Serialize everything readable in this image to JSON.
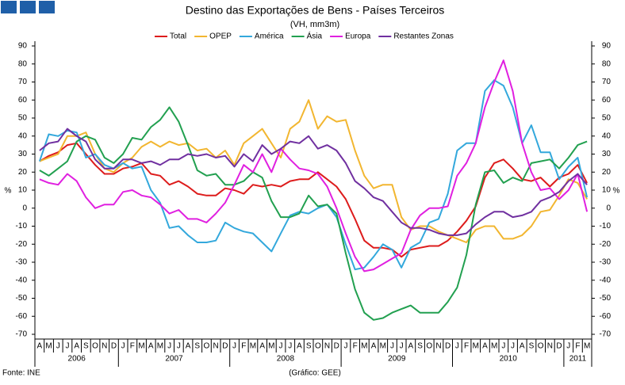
{
  "chart_data": {
    "type": "line",
    "title": "Destino das Exportações de Bens - Países Terceiros",
    "subtitle": "(VH, mm3m)",
    "y_label": "%",
    "y2_label": "%",
    "source": "Fonte: INE",
    "credit": "(Gráfico: GEE)",
    "categories": [
      "A",
      "M",
      "J",
      "J",
      "A",
      "S",
      "O",
      "N",
      "D",
      "J",
      "F",
      "M",
      "A",
      "M",
      "J",
      "J",
      "A",
      "S",
      "O",
      "N",
      "D",
      "J",
      "F",
      "M",
      "A",
      "M",
      "J",
      "J",
      "A",
      "S",
      "O",
      "N",
      "D",
      "J",
      "F",
      "M",
      "A",
      "M",
      "J",
      "J",
      "A",
      "S",
      "O",
      "N",
      "D",
      "J",
      "F",
      "M",
      "A",
      "M",
      "J",
      "J",
      "A",
      "S",
      "O",
      "N",
      "D",
      "J",
      "F",
      "M"
    ],
    "years": [
      "2006",
      "2007",
      "2008",
      "2009",
      "2010",
      "2011"
    ],
    "ylim": [
      -70,
      90
    ],
    "yticks": [
      -70,
      -60,
      -50,
      -40,
      -30,
      -20,
      -10,
      0,
      10,
      20,
      30,
      40,
      50,
      60,
      70,
      80,
      90
    ],
    "y2lim": [
      -70,
      90
    ],
    "y2ticks": [
      -70,
      -60,
      -50,
      -40,
      -30,
      -20,
      -10,
      0,
      10,
      20,
      30,
      40,
      50,
      60,
      70,
      80,
      90
    ],
    "series": [
      {
        "name": "Total",
        "color": "#dd1c1c",
        "values": [
          26,
          29,
          31,
          35,
          36,
          30,
          24,
          19,
          19,
          22,
          23,
          25,
          19,
          18,
          13,
          15,
          12,
          8,
          7,
          7,
          11,
          10,
          8,
          13,
          12,
          13,
          12,
          15,
          16,
          16,
          20,
          16,
          12,
          5,
          -6,
          -18,
          -22,
          -22,
          -23,
          -27,
          -23,
          -22,
          -21,
          -21,
          -18,
          -13,
          -7,
          1,
          17,
          25,
          27,
          22,
          16,
          15,
          17,
          12,
          17,
          19,
          24,
          14
        ]
      },
      {
        "name": "OPEP",
        "color": "#f2b630",
        "values": [
          26,
          28,
          30,
          40,
          40,
          42,
          30,
          22,
          20,
          25,
          28,
          34,
          37,
          34,
          37,
          35,
          36,
          32,
          33,
          28,
          32,
          24,
          36,
          40,
          44,
          36,
          28,
          44,
          48,
          60,
          44,
          51,
          48,
          49,
          32,
          18,
          11,
          13,
          13,
          -5,
          -12,
          -10,
          -10,
          -13,
          -15,
          -17,
          -19,
          -12,
          -10,
          -10,
          -17,
          -17,
          -15,
          -10,
          -2,
          -1,
          7,
          16,
          14,
          5
        ]
      },
      {
        "name": "América",
        "color": "#33a8dc",
        "values": [
          26,
          41,
          40,
          43,
          42,
          28,
          30,
          24,
          22,
          25,
          22,
          23,
          10,
          3,
          -11,
          -10,
          -15,
          -19,
          -19,
          -18,
          -8,
          -11,
          -13,
          -14,
          -19,
          -24,
          -14,
          -4,
          -2,
          -3,
          0,
          2,
          -5,
          -20,
          -34,
          -33,
          -27,
          -20,
          -23,
          -33,
          -22,
          -19,
          -8,
          -6,
          8,
          32,
          36,
          36,
          65,
          71,
          68,
          56,
          36,
          46,
          31,
          31,
          16,
          23,
          28,
          6
        ]
      },
      {
        "name": "Ásia",
        "color": "#22a050",
        "values": [
          21,
          18,
          22,
          26,
          37,
          40,
          38,
          28,
          25,
          30,
          39,
          38,
          45,
          49,
          56,
          48,
          35,
          21,
          18,
          19,
          13,
          13,
          15,
          20,
          17,
          4,
          -5,
          -5,
          -3,
          7,
          1,
          2,
          -3,
          -25,
          -45,
          -58,
          -62,
          -61,
          -58,
          -56,
          -54,
          -58,
          -58,
          -58,
          -52,
          -44,
          -26,
          2,
          20,
          21,
          14,
          17,
          15,
          25,
          26,
          27,
          22,
          28,
          35,
          37
        ]
      },
      {
        "name": "Europa",
        "color": "#e020e0",
        "values": [
          16,
          14,
          13,
          19,
          15,
          6,
          0,
          2,
          2,
          9,
          10,
          7,
          6,
          2,
          -3,
          -1,
          -6,
          -6,
          -8,
          -3,
          3,
          13,
          24,
          20,
          30,
          20,
          33,
          27,
          22,
          21,
          19,
          12,
          0,
          -14,
          -27,
          -35,
          -34,
          -31,
          -28,
          -25,
          -12,
          -4,
          0,
          0,
          1,
          18,
          25,
          36,
          56,
          70,
          82,
          65,
          36,
          20,
          10,
          11,
          5,
          10,
          19,
          -2
        ]
      },
      {
        "name": "Restantes Zonas",
        "color": "#7030a0",
        "values": [
          32,
          36,
          37,
          44,
          40,
          37,
          27,
          22,
          22,
          27,
          27,
          25,
          26,
          24,
          27,
          27,
          30,
          29,
          30,
          28,
          29,
          23,
          30,
          26,
          35,
          30,
          33,
          37,
          36,
          40,
          33,
          35,
          32,
          25,
          15,
          11,
          6,
          4,
          -2,
          -8,
          -11,
          -11,
          -12,
          -14,
          -15,
          -15,
          -14,
          -9,
          -5,
          -2,
          -2,
          -5,
          -4,
          -2,
          4,
          6,
          9,
          15,
          19,
          13
        ]
      }
    ]
  }
}
